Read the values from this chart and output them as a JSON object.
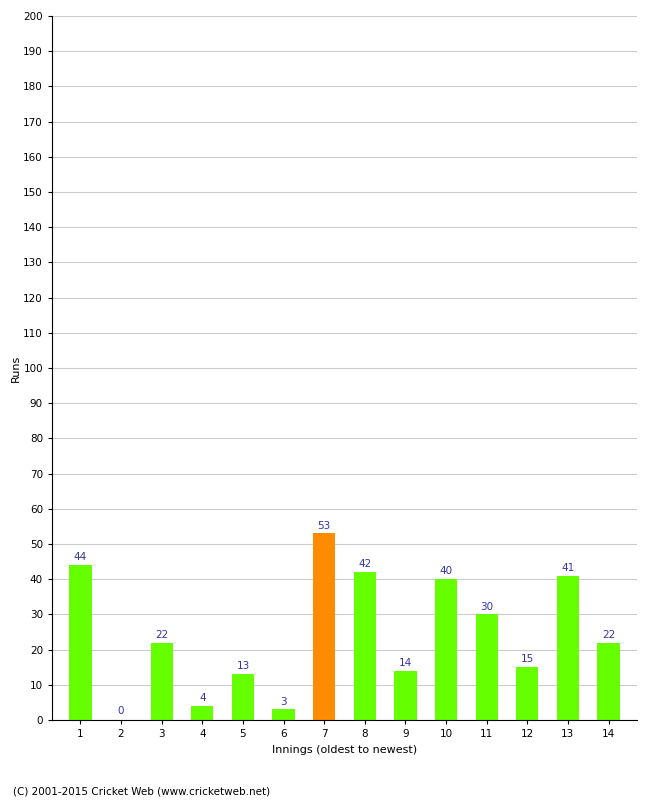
{
  "innings": [
    1,
    2,
    3,
    4,
    5,
    6,
    7,
    8,
    9,
    10,
    11,
    12,
    13,
    14
  ],
  "runs": [
    44,
    0,
    22,
    4,
    13,
    3,
    53,
    42,
    14,
    40,
    30,
    15,
    41,
    22
  ],
  "bar_colors": [
    "#66ff00",
    "#66ff00",
    "#66ff00",
    "#66ff00",
    "#66ff00",
    "#66ff00",
    "#ff8c00",
    "#66ff00",
    "#66ff00",
    "#66ff00",
    "#66ff00",
    "#66ff00",
    "#66ff00",
    "#66ff00"
  ],
  "title": "",
  "xlabel": "Innings (oldest to newest)",
  "ylabel": "Runs",
  "ylim": [
    0,
    200
  ],
  "yticks": [
    0,
    10,
    20,
    30,
    40,
    50,
    60,
    70,
    80,
    90,
    100,
    110,
    120,
    130,
    140,
    150,
    160,
    170,
    180,
    190,
    200
  ],
  "label_color": "#3333aa",
  "label_fontsize": 7.5,
  "axis_fontsize": 8,
  "tick_fontsize": 7.5,
  "footer": "(C) 2001-2015 Cricket Web (www.cricketweb.net)",
  "background_color": "#ffffff",
  "grid_color": "#cccccc"
}
